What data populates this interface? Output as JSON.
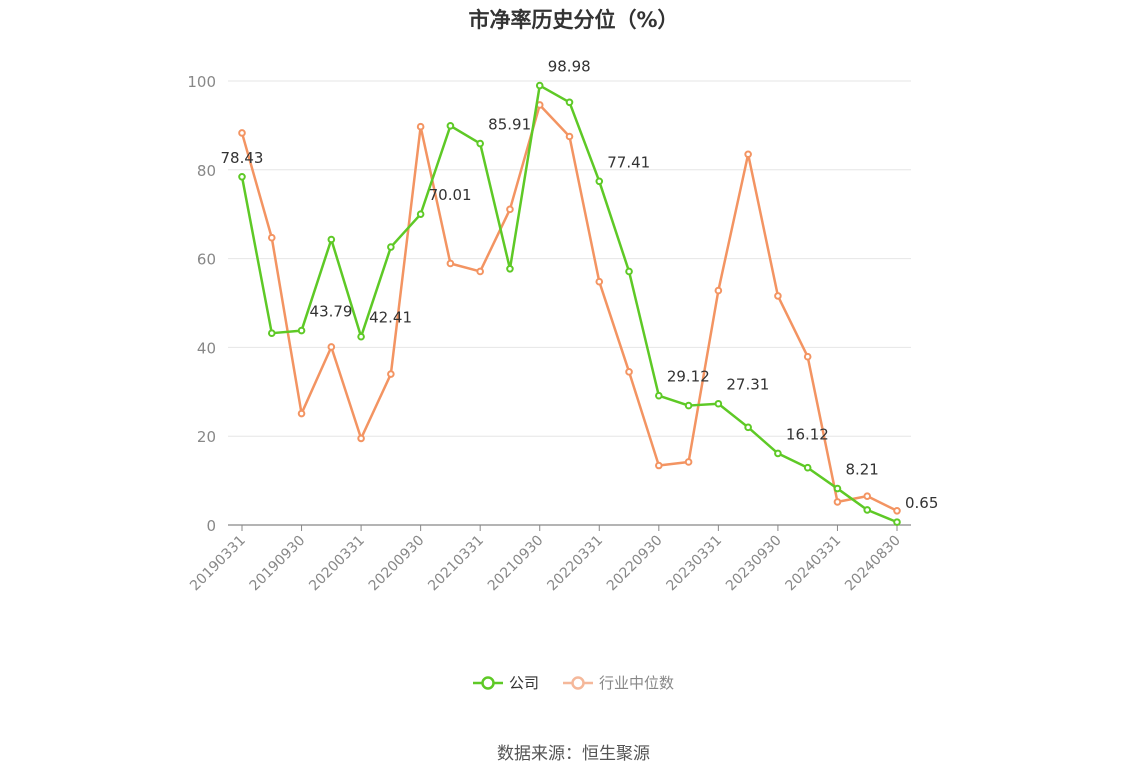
{
  "title": "市净率历史分位（%）",
  "source": "数据来源：恒生聚源",
  "legend": [
    {
      "name": "公司",
      "color": "#5ec926"
    },
    {
      "name": "行业中位数",
      "color": "#f39462"
    }
  ],
  "chart_data": {
    "type": "line",
    "ylim": [
      0,
      100
    ],
    "y_ticks": [
      0,
      20,
      40,
      60,
      80,
      100
    ],
    "x_tick_labels": [
      "20190331",
      "20190930",
      "20200331",
      "20200930",
      "20210331",
      "20210930",
      "20220331",
      "20220930",
      "20230331",
      "20230930",
      "20240331",
      "20240830"
    ],
    "x": [
      "20190331",
      "20190630",
      "20190930",
      "20191231",
      "20200331",
      "20200630",
      "20200930",
      "20201231",
      "20210331",
      "20210630",
      "20210930",
      "20211231",
      "20220331",
      "20220630",
      "20220930",
      "20221231",
      "20230331",
      "20230630",
      "20230930",
      "20231231",
      "20240331",
      "20240630",
      "20240830"
    ],
    "series": [
      {
        "name": "公司",
        "color": "#5ec926",
        "values": [
          78.43,
          43.2,
          43.79,
          64.3,
          42.41,
          62.6,
          70.01,
          89.9,
          85.91,
          57.7,
          98.98,
          95.2,
          77.41,
          57.1,
          29.12,
          26.9,
          27.31,
          22.0,
          16.12,
          12.9,
          8.21,
          3.4,
          0.65
        ],
        "labels": {
          "0": "78.43",
          "2": "43.79",
          "4": "42.41",
          "6": "70.01",
          "8": "85.91",
          "10": "98.98",
          "12": "77.41",
          "14": "29.12",
          "16": "27.31",
          "18": "16.12",
          "20": "8.21",
          "22": "0.65"
        }
      },
      {
        "name": "行业中位数",
        "color": "#f39462",
        "values": [
          88.3,
          64.7,
          25.1,
          40.1,
          19.5,
          34.0,
          89.7,
          58.9,
          57.1,
          71.1,
          94.6,
          87.5,
          54.8,
          34.5,
          13.4,
          14.2,
          52.8,
          83.5,
          51.6,
          37.9,
          5.2,
          6.5,
          3.2
        ]
      }
    ]
  }
}
